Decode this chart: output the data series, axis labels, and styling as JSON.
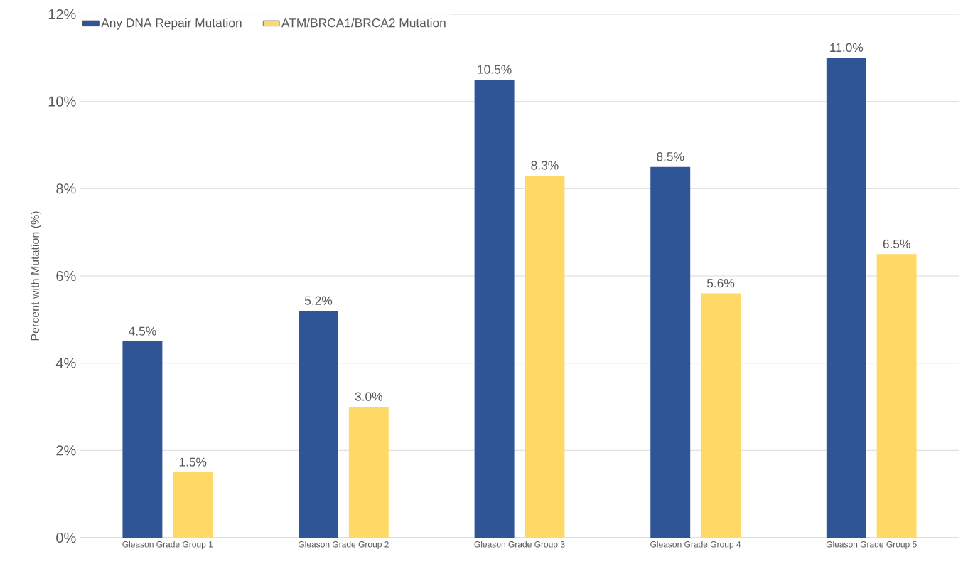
{
  "chart_data": {
    "type": "bar",
    "ylabel": "Percent with Mutation (%)",
    "categories": [
      "Gleason Grade Group 1",
      "Gleason Grade Group 2",
      "Gleason Grade Group 3",
      "Gleason Grade Group 4",
      "Gleason Grade Group 5"
    ],
    "series": [
      {
        "name": "Any DNA Repair Mutation",
        "color": "#2f5597",
        "values": [
          4.5,
          5.2,
          10.5,
          8.5,
          11.0
        ],
        "value_labels": [
          "4.5%",
          "5.2%",
          "10.5%",
          "8.5%",
          "11.0%"
        ]
      },
      {
        "name": "ATM/BRCA1/BRCA2 Mutation",
        "color": "#ffd966",
        "values": [
          1.5,
          3.0,
          8.3,
          5.6,
          6.5
        ],
        "value_labels": [
          "1.5%",
          "3.0%",
          "8.3%",
          "5.6%",
          "6.5%"
        ]
      }
    ],
    "ylim": [
      0,
      12
    ],
    "yticks": [
      {
        "value": 0,
        "label": "0%"
      },
      {
        "value": 2,
        "label": "2%"
      },
      {
        "value": 4,
        "label": "4%"
      },
      {
        "value": 6,
        "label": "6%"
      },
      {
        "value": 8,
        "label": "8%"
      },
      {
        "value": 10,
        "label": "10%"
      },
      {
        "value": 12,
        "label": "12%"
      }
    ],
    "grid": "y",
    "legend": "top left"
  }
}
